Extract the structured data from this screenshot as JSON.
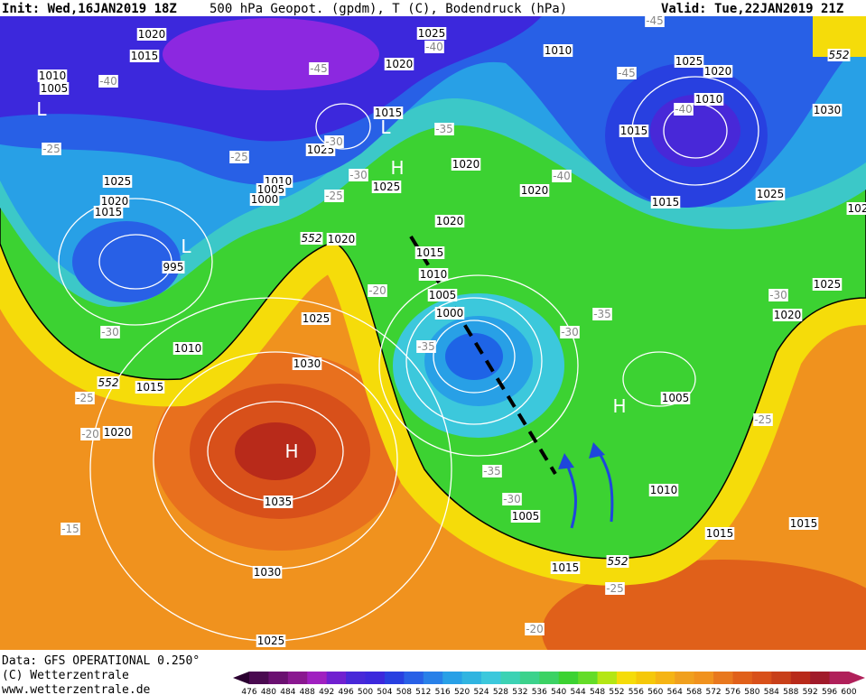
{
  "header": {
    "init": "Init: Wed,16JAN2019 18Z",
    "title": "500 hPa Geopot. (gpdm), T (C), Bodendruck (hPa)",
    "valid": "Valid: Tue,22JAN2019 21Z"
  },
  "footer": {
    "data": "Data: GFS OPERATIONAL 0.250°",
    "copyright": "(C) Wetterzentrale",
    "url": "www.wetterzentrale.de"
  },
  "colorbar": [
    476,
    480,
    484,
    488,
    492,
    496,
    500,
    504,
    508,
    512,
    516,
    520,
    524,
    528,
    532,
    536,
    540,
    544,
    548,
    552,
    556,
    560,
    564,
    568,
    572,
    576,
    580,
    584,
    588,
    592,
    596,
    600
  ],
  "pressure_labels": [
    "1020",
    "1015",
    "1010",
    "1005",
    "1025",
    "1020",
    "1015",
    "1025",
    "1025",
    "1010",
    "1005",
    "1000",
    "1025",
    "1020",
    "1015",
    "995",
    "1020",
    "1020",
    "1020",
    "1015",
    "1010",
    "1005",
    "1000",
    "1025",
    "1030",
    "1010",
    "1015",
    "1020",
    "1035",
    "1030",
    "1025",
    "1010",
    "1025",
    "1020",
    "1010",
    "1015",
    "1030",
    "1020",
    "1015",
    "1025",
    "1025",
    "1020",
    "1005",
    "1010",
    "1015",
    "1015",
    "1015",
    "1005",
    "102"
  ],
  "temperature_labels": [
    "-40",
    "-45",
    "-35",
    "-40",
    "-45",
    "-45",
    "-40",
    "-30",
    "-25",
    "-30",
    "-25",
    "-40",
    "-25",
    "-20",
    "-35",
    "-30",
    "-35",
    "-30",
    "-30",
    "-25",
    "-20",
    "-25",
    "-35",
    "-30",
    "-25",
    "-20",
    "-15"
  ],
  "height_labels": [
    "552",
    "552",
    "552",
    "552"
  ],
  "centers": [
    "L",
    "L",
    "L",
    "H",
    "H",
    "H"
  ]
}
